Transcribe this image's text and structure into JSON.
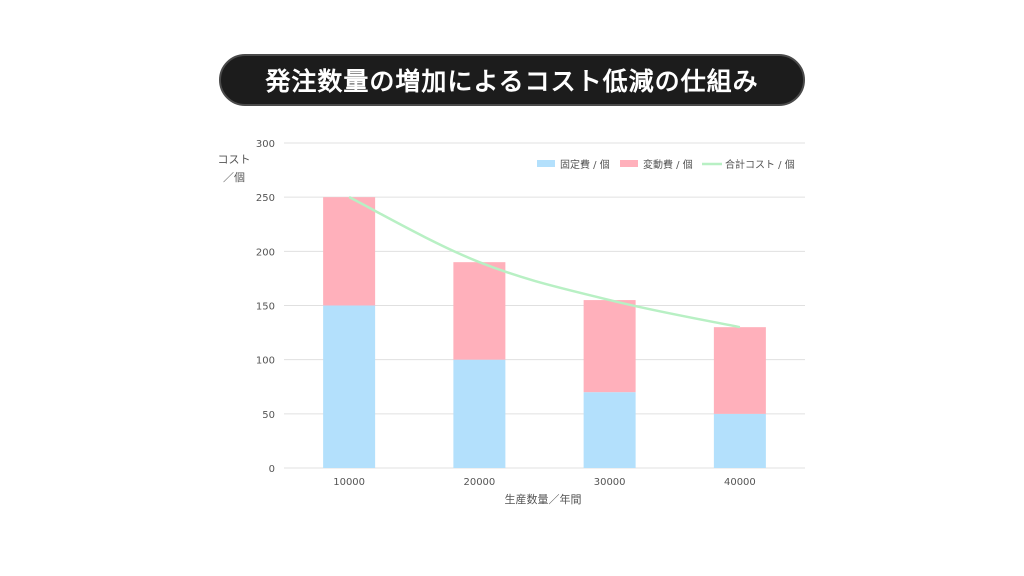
{
  "title": "発注数量の増加によるコスト低減の仕組み",
  "colors": {
    "fixed": "#b3e0fc",
    "variable": "#ffb0bb",
    "total": "#b8f0c4",
    "grid": "#e0e0e0",
    "title_bg": "#1c1c1c"
  },
  "chart_data": {
    "type": "bar",
    "stacked": true,
    "categories": [
      "10000",
      "20000",
      "30000",
      "40000"
    ],
    "series": [
      {
        "name": "固定費 / 個",
        "type": "bar",
        "values": [
          150,
          100,
          70,
          50
        ]
      },
      {
        "name": "変動費 / 個",
        "type": "bar",
        "values": [
          100,
          90,
          85,
          80
        ]
      },
      {
        "name": "合計コスト / 個",
        "type": "line",
        "values": [
          250,
          190,
          155,
          130
        ]
      }
    ],
    "xlabel": "生産数量／年間",
    "ylabel_line1": "コスト",
    "ylabel_line2": "／個",
    "ylim": [
      0,
      300
    ],
    "yticks": [
      "0",
      "50",
      "100",
      "150",
      "200",
      "250",
      "300"
    ],
    "grid": true,
    "legend_position": "top-right"
  }
}
